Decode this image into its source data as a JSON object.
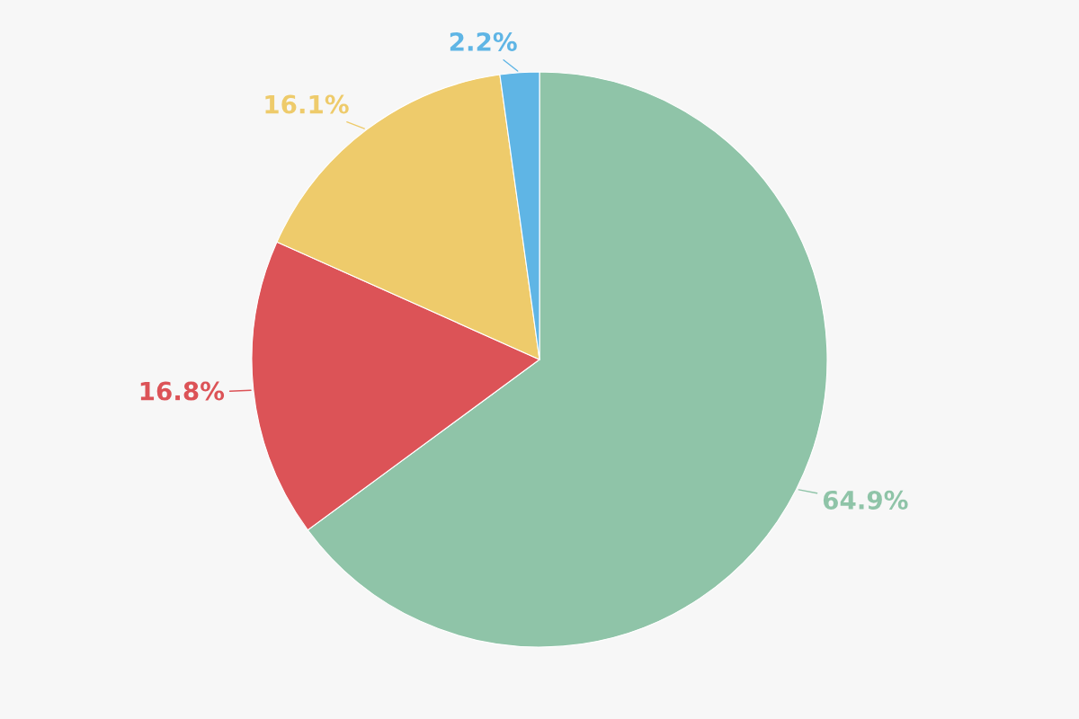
{
  "chart_data": {
    "type": "pie",
    "categories": [
      null,
      null,
      null,
      null
    ],
    "values": [
      64.9,
      16.8,
      16.1,
      2.2
    ],
    "colors": [
      "#8fc4a8",
      "#dc5357",
      "#eecb6b",
      "#5fb5e5"
    ],
    "value_labels": [
      "64.9%",
      "16.8%",
      "16.1%",
      "2.2%"
    ]
  }
}
